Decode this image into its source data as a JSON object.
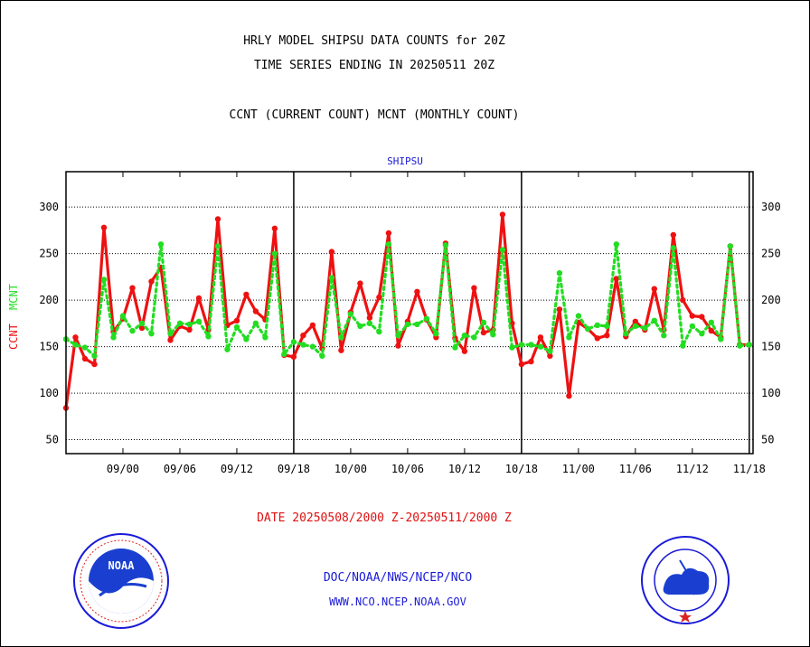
{
  "titles": {
    "line1": "HRLY MODEL SHIPSU DATA COUNTS for 20Z",
    "line2": "TIME SERIES ENDING IN 20250511 20Z",
    "line3": "CCNT (CURRENT COUNT) MCNT (MONTHLY COUNT)",
    "station": "SHIPSU"
  },
  "date_range": "DATE 20250508/2000 Z-20250511/2000 Z",
  "footer": {
    "org": "DOC/NOAA/NWS/NCEP/NCO",
    "url": "WWW.NCO.NCEP.NOAA.GOV"
  },
  "logos": {
    "noaa_text": "NOAA",
    "noaa_ring": "NATIONAL OCEANIC AND ATMOSPHERIC ADMINISTRATION · U.S. DEPARTMENT OF COMMERCE",
    "nws_ring": "NATIONAL WEATHER SERVICE"
  },
  "colors": {
    "ccnt": "#ee1111",
    "mcnt": "#22dd22",
    "text_blue": "#1a1ad8",
    "grid": "#000000"
  },
  "chart_data": {
    "type": "line",
    "title": "HRLY MODEL SHIPSU DATA COUNTS for 20Z",
    "ylabel_ccnt": "CCNT",
    "ylabel_mcnt": "MCNT",
    "ylim": [
      35,
      338
    ],
    "yticks": [
      50,
      100,
      150,
      200,
      250,
      300
    ],
    "grid": "horizontal dotted",
    "x_tick_labels": [
      "09/00",
      "09/06",
      "09/12",
      "09/18",
      "10/00",
      "10/06",
      "10/12",
      "10/18",
      "11/00",
      "11/06",
      "11/12",
      "11/18"
    ],
    "x_tick_hours": [
      4,
      10,
      16,
      22,
      28,
      34,
      40,
      46,
      52,
      58,
      64,
      70
    ],
    "day_boundary_hours": [
      22,
      46,
      70
    ],
    "series": [
      {
        "name": "CCNT",
        "style": "solid",
        "values": [
          84,
          160,
          137,
          131,
          278,
          166,
          180,
          213,
          170,
          220,
          235,
          157,
          172,
          168,
          202,
          168,
          287,
          173,
          178,
          206,
          188,
          179,
          277,
          141,
          139,
          162,
          173,
          148,
          252,
          146,
          187,
          218,
          181,
          203,
          272,
          151,
          177,
          209,
          179,
          160,
          261,
          159,
          145,
          213,
          165,
          168,
          292,
          175,
          131,
          134,
          160,
          140,
          190,
          97,
          176,
          169,
          159,
          162,
          223,
          161,
          177,
          168,
          212,
          168,
          270,
          200,
          183,
          182,
          167,
          160,
          258,
          152,
          152
        ],
        "x_hours": [
          -2,
          -1,
          0,
          1,
          2,
          3,
          4,
          5,
          6,
          7,
          8,
          9,
          10,
          11,
          12,
          13,
          14,
          15,
          16,
          17,
          18,
          19,
          20,
          21,
          22,
          23,
          24,
          25,
          26,
          27,
          28,
          29,
          30,
          31,
          32,
          33,
          34,
          35,
          36,
          37,
          38,
          39,
          40,
          41,
          42,
          43,
          44,
          45,
          46,
          47,
          48,
          49,
          50,
          51,
          52,
          53,
          54,
          55,
          56,
          57,
          58,
          59,
          60,
          61,
          62,
          63,
          64,
          65,
          66,
          67,
          68,
          69,
          70
        ]
      },
      {
        "name": "MCNT",
        "style": "dotted",
        "values": [
          158,
          152,
          149,
          140,
          222,
          160,
          183,
          167,
          175,
          164,
          260,
          164,
          175,
          174,
          177,
          161,
          258,
          147,
          171,
          158,
          175,
          160,
          250,
          142,
          155,
          152,
          150,
          140,
          224,
          160,
          185,
          172,
          175,
          166,
          260,
          162,
          174,
          174,
          180,
          164,
          259,
          149,
          162,
          160,
          176,
          163,
          254,
          149,
          152,
          152,
          150,
          145,
          229,
          160,
          183,
          169,
          173,
          172,
          260,
          164,
          172,
          170,
          178,
          162,
          256,
          151,
          172,
          164,
          176,
          158,
          258,
          151,
          152
        ],
        "x_hours": [
          -2,
          -1,
          0,
          1,
          2,
          3,
          4,
          5,
          6,
          7,
          8,
          9,
          10,
          11,
          12,
          13,
          14,
          15,
          16,
          17,
          18,
          19,
          20,
          21,
          22,
          23,
          24,
          25,
          26,
          27,
          28,
          29,
          30,
          31,
          32,
          33,
          34,
          35,
          36,
          37,
          38,
          39,
          40,
          41,
          42,
          43,
          44,
          45,
          46,
          47,
          48,
          49,
          50,
          51,
          52,
          53,
          54,
          55,
          56,
          57,
          58,
          59,
          60,
          61,
          62,
          63,
          64,
          65,
          66,
          67,
          68,
          69,
          70
        ]
      }
    ]
  }
}
